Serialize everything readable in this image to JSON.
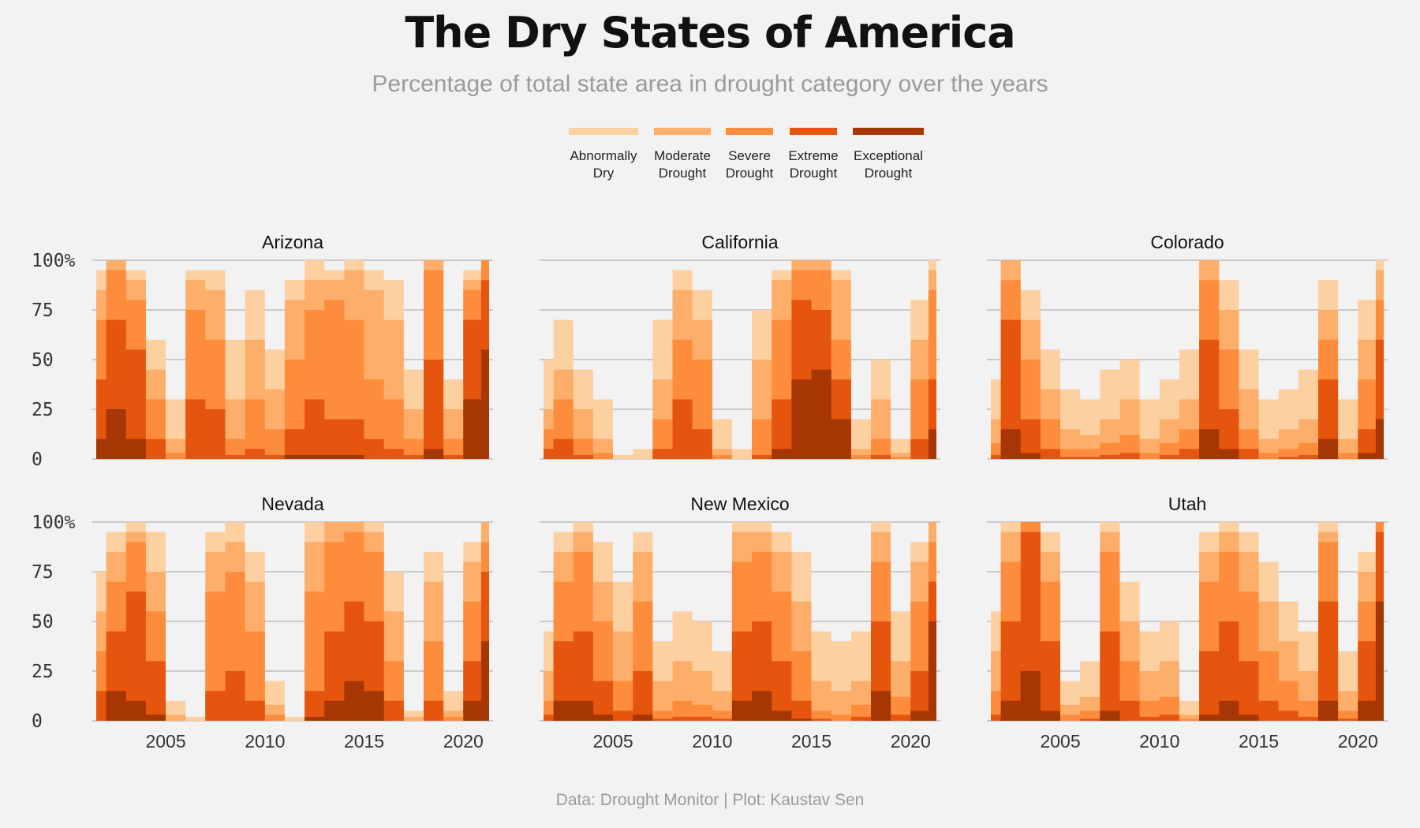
{
  "title": "The Dry States of America",
  "subtitle": "Percentage of total state area in drought category over the years",
  "caption": "Data: Drought Monitor | Plot: Kaustav Sen",
  "legend": [
    {
      "line1": "Abnormally",
      "line2": "Dry",
      "color": "#fdd0a2"
    },
    {
      "line1": "Moderate",
      "line2": "Drought",
      "color": "#fdae6b"
    },
    {
      "line1": "Severe",
      "line2": "Drought",
      "color": "#fd8d3c"
    },
    {
      "line1": "Extreme",
      "line2": "Drought",
      "color": "#e6550d"
    },
    {
      "line1": "Exceptional",
      "line2": "Drought",
      "color": "#a63603"
    }
  ],
  "chart_data": {
    "type": "area",
    "facets": [
      "Arizona",
      "California",
      "Colorado",
      "Nevada",
      "New Mexico",
      "Utah"
    ],
    "x": [
      2001.5,
      2002.5,
      2003.5,
      2004.5,
      2005.5,
      2006.5,
      2007.5,
      2008.5,
      2009.5,
      2010.5,
      2011.5,
      2012.5,
      2013.5,
      2014.5,
      2015.5,
      2016.5,
      2017.5,
      2018.5,
      2019.5,
      2020.5,
      2021.3
    ],
    "xlim": [
      2001.3,
      2021.5
    ],
    "x_ticks": [
      "2005",
      "2010",
      "2015",
      "2020"
    ],
    "x_tick_values": [
      2005,
      2010,
      2015,
      2020
    ],
    "ylim": [
      0,
      100
    ],
    "y_ticks": [
      "0",
      "25",
      "50",
      "75",
      "100%"
    ],
    "y_tick_values": [
      0,
      25,
      50,
      75,
      100
    ],
    "categories": [
      "Abnormally Dry",
      "Moderate Drought",
      "Severe Drought",
      "Extreme Drought",
      "Exceptional Drought"
    ],
    "panels": [
      {
        "state": "Arizona",
        "series": [
          {
            "name": "Abnormally Dry",
            "values": [
              95,
              100,
              95,
              60,
              30,
              95,
              95,
              60,
              85,
              55,
              90,
              100,
              95,
              100,
              95,
              90,
              45,
              100,
              40,
              95,
              100
            ]
          },
          {
            "name": "Moderate Drought",
            "values": [
              85,
              100,
              90,
              45,
              10,
              90,
              85,
              30,
              60,
              35,
              80,
              90,
              90,
              95,
              85,
              70,
              25,
              100,
              25,
              90,
              100
            ]
          },
          {
            "name": "Severe Drought",
            "values": [
              70,
              95,
              80,
              30,
              3,
              75,
              60,
              10,
              30,
              15,
              50,
              75,
              80,
              70,
              40,
              30,
              10,
              95,
              10,
              85,
              100
            ]
          },
          {
            "name": "Extreme Drought",
            "values": [
              40,
              70,
              55,
              10,
              0,
              30,
              25,
              2,
              5,
              2,
              15,
              30,
              20,
              20,
              10,
              5,
              2,
              50,
              2,
              70,
              90
            ]
          },
          {
            "name": "Exceptional Drought",
            "values": [
              10,
              25,
              10,
              0,
              0,
              0,
              0,
              0,
              0,
              0,
              2,
              2,
              2,
              2,
              0,
              0,
              0,
              5,
              0,
              30,
              55
            ]
          }
        ]
      },
      {
        "state": "California",
        "series": [
          {
            "name": "Abnormally Dry",
            "values": [
              50,
              70,
              45,
              30,
              2,
              5,
              70,
              95,
              85,
              20,
              5,
              75,
              95,
              100,
              100,
              95,
              20,
              50,
              10,
              80,
              100
            ]
          },
          {
            "name": "Moderate Drought",
            "values": [
              25,
              45,
              25,
              10,
              0,
              0,
              40,
              85,
              70,
              5,
              0,
              50,
              90,
              100,
              100,
              90,
              5,
              30,
              3,
              60,
              95
            ]
          },
          {
            "name": "Severe Drought",
            "values": [
              15,
              30,
              10,
              3,
              0,
              0,
              20,
              60,
              50,
              2,
              0,
              20,
              70,
              95,
              95,
              60,
              2,
              10,
              1,
              40,
              85
            ]
          },
          {
            "name": "Extreme Drought",
            "values": [
              5,
              10,
              2,
              0,
              0,
              0,
              5,
              30,
              15,
              0,
              0,
              2,
              30,
              80,
              75,
              40,
              0,
              2,
              0,
              10,
              40
            ]
          },
          {
            "name": "Exceptional Drought",
            "values": [
              0,
              0,
              0,
              0,
              0,
              0,
              0,
              0,
              0,
              0,
              0,
              0,
              5,
              40,
              45,
              20,
              0,
              0,
              0,
              0,
              15
            ]
          }
        ]
      },
      {
        "state": "Colorado",
        "series": [
          {
            "name": "Abnormally Dry",
            "values": [
              40,
              100,
              85,
              55,
              35,
              30,
              45,
              50,
              30,
              40,
              55,
              100,
              90,
              55,
              30,
              35,
              45,
              90,
              30,
              80,
              100
            ]
          },
          {
            "name": "Moderate Drought",
            "values": [
              20,
              100,
              70,
              35,
              15,
              12,
              20,
              30,
              10,
              20,
              30,
              100,
              75,
              35,
              10,
              15,
              20,
              75,
              10,
              60,
              95
            ]
          },
          {
            "name": "Severe Drought",
            "values": [
              8,
              90,
              50,
              20,
              5,
              5,
              8,
              12,
              3,
              8,
              15,
              90,
              55,
              15,
              3,
              5,
              8,
              60,
              3,
              40,
              80
            ]
          },
          {
            "name": "Extreme Drought",
            "values": [
              2,
              70,
              20,
              5,
              1,
              1,
              2,
              3,
              0,
              2,
              5,
              60,
              25,
              5,
              0,
              1,
              2,
              40,
              0,
              15,
              60
            ]
          },
          {
            "name": "Exceptional Drought",
            "values": [
              0,
              15,
              3,
              0,
              0,
              0,
              0,
              0,
              0,
              0,
              0,
              15,
              5,
              0,
              0,
              0,
              0,
              10,
              0,
              3,
              20
            ]
          }
        ]
      },
      {
        "state": "Nevada",
        "series": [
          {
            "name": "Abnormally Dry",
            "values": [
              75,
              95,
              100,
              95,
              10,
              2,
              95,
              100,
              85,
              20,
              2,
              100,
              100,
              100,
              100,
              75,
              5,
              85,
              15,
              90,
              100
            ]
          },
          {
            "name": "Moderate Drought",
            "values": [
              55,
              85,
              95,
              75,
              3,
              0,
              85,
              90,
              70,
              8,
              0,
              90,
              100,
              100,
              95,
              55,
              2,
              70,
              5,
              80,
              100
            ]
          },
          {
            "name": "Severe Drought",
            "values": [
              35,
              70,
              90,
              55,
              0,
              0,
              65,
              75,
              45,
              3,
              0,
              65,
              90,
              95,
              85,
              30,
              0,
              40,
              2,
              60,
              90
            ]
          },
          {
            "name": "Extreme Drought",
            "values": [
              15,
              45,
              65,
              30,
              0,
              0,
              15,
              25,
              10,
              0,
              0,
              15,
              45,
              60,
              50,
              10,
              0,
              10,
              0,
              30,
              75
            ]
          },
          {
            "name": "Exceptional Drought",
            "values": [
              0,
              15,
              10,
              3,
              0,
              0,
              0,
              0,
              0,
              0,
              0,
              2,
              10,
              20,
              15,
              0,
              0,
              0,
              0,
              10,
              40
            ]
          }
        ]
      },
      {
        "state": "New Mexico",
        "series": [
          {
            "name": "Abnormally Dry",
            "values": [
              45,
              95,
              100,
              90,
              70,
              95,
              40,
              55,
              50,
              35,
              100,
              100,
              95,
              85,
              45,
              40,
              45,
              100,
              55,
              90,
              100
            ]
          },
          {
            "name": "Moderate Drought",
            "values": [
              25,
              85,
              95,
              70,
              45,
              85,
              20,
              30,
              25,
              15,
              95,
              95,
              85,
              60,
              20,
              15,
              20,
              95,
              30,
              80,
              100
            ]
          },
          {
            "name": "Severe Drought",
            "values": [
              10,
              70,
              85,
              50,
              20,
              60,
              5,
              10,
              8,
              5,
              80,
              85,
              65,
              35,
              5,
              3,
              8,
              80,
              12,
              60,
              90
            ]
          },
          {
            "name": "Extreme Drought",
            "values": [
              3,
              40,
              45,
              20,
              5,
              25,
              1,
              2,
              2,
              1,
              45,
              50,
              30,
              10,
              1,
              0,
              2,
              50,
              3,
              25,
              70
            ]
          },
          {
            "name": "Exceptional Drought",
            "values": [
              0,
              10,
              10,
              3,
              0,
              3,
              0,
              0,
              0,
              0,
              10,
              15,
              5,
              1,
              0,
              0,
              0,
              15,
              0,
              5,
              50
            ]
          }
        ]
      },
      {
        "state": "Utah",
        "series": [
          {
            "name": "Abnormally Dry",
            "values": [
              55,
              100,
              100,
              95,
              20,
              30,
              100,
              70,
              45,
              50,
              10,
              95,
              100,
              95,
              80,
              60,
              45,
              100,
              35,
              85,
              100
            ]
          },
          {
            "name": "Moderate Drought",
            "values": [
              35,
              95,
              100,
              85,
              8,
              12,
              95,
              50,
              25,
              30,
              3,
              85,
              95,
              85,
              60,
              40,
              25,
              95,
              15,
              75,
              100
            ]
          },
          {
            "name": "Severe Drought",
            "values": [
              15,
              80,
              100,
              70,
              3,
              5,
              85,
              30,
              10,
              12,
              1,
              70,
              85,
              65,
              35,
              20,
              10,
              90,
              5,
              60,
              100
            ]
          },
          {
            "name": "Extreme Drought",
            "values": [
              3,
              50,
              95,
              40,
              0,
              1,
              45,
              10,
              2,
              3,
              0,
              35,
              50,
              30,
              10,
              5,
              2,
              60,
              1,
              40,
              95
            ]
          },
          {
            "name": "Exceptional Drought",
            "values": [
              0,
              10,
              25,
              5,
              0,
              0,
              5,
              0,
              0,
              0,
              0,
              3,
              10,
              3,
              0,
              0,
              0,
              10,
              0,
              10,
              60
            ]
          }
        ]
      }
    ]
  }
}
